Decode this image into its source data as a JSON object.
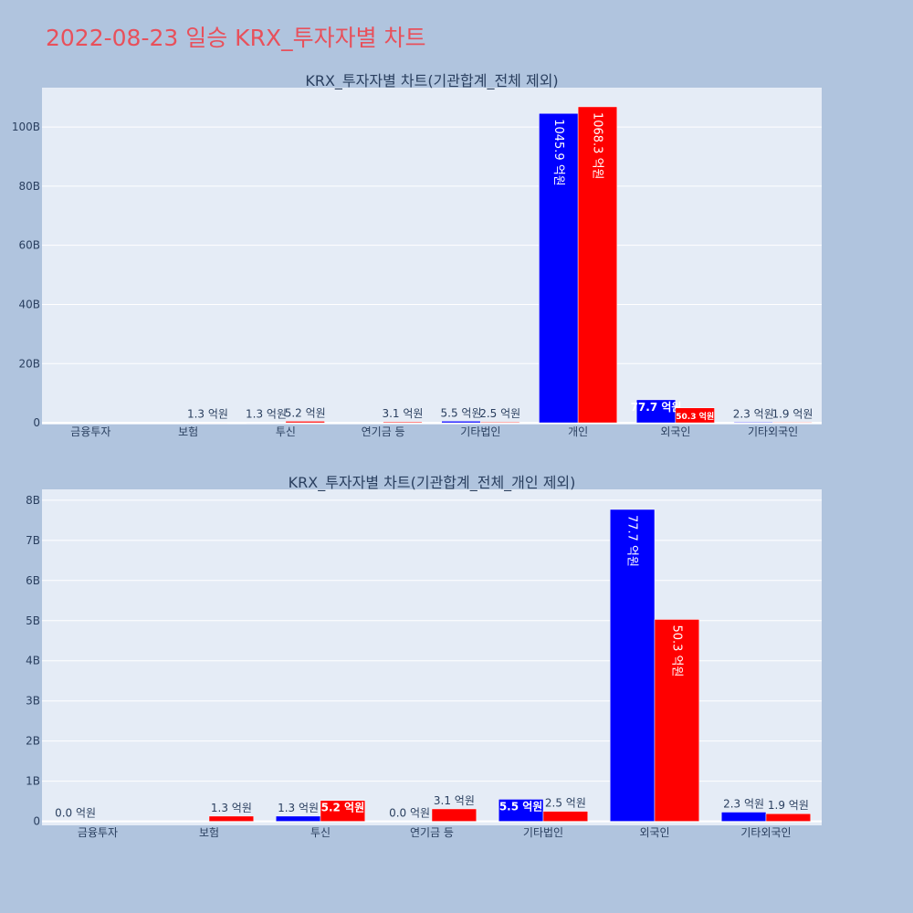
{
  "page_title": "2022-08-23 일승 KRX_투자자별 차트",
  "colors": {
    "buy": "#0000ff",
    "sell": "#ff0000",
    "title": "#e8505b",
    "page_bg": "#b0c4de",
    "plot_bg": "#e5ecf6"
  },
  "chart_data": [
    {
      "type": "bar",
      "title": "KRX_투자자별 차트(기관합계_전체 제외)",
      "categories": [
        "금융투자",
        "보험",
        "투신",
        "연기금 등",
        "기타법인",
        "개인",
        "외국인",
        "기타외국인"
      ],
      "series": [
        {
          "values": [
            0.0,
            0.0,
            0.13,
            0.0,
            0.55,
            104.59,
            7.77,
            0.23
          ],
          "labels": [
            "",
            "",
            "1.3 억원",
            "",
            "5.5 억원",
            "1045.9 억원",
            "77.7 억원",
            "2.3 억원"
          ]
        },
        {
          "values": [
            0.0,
            0.13,
            0.52,
            0.31,
            0.25,
            106.83,
            5.03,
            0.19
          ],
          "labels": [
            "",
            "1.3 억원",
            "5.2 억원",
            "3.1 억원",
            "2.5 억원",
            "1068.3 억원",
            "50.3 억원",
            "1.9 억원"
          ]
        }
      ],
      "yticks": [
        "0",
        "20B",
        "40B",
        "60B",
        "80B",
        "100B"
      ],
      "ytick_values": [
        0,
        20,
        40,
        60,
        80,
        100
      ],
      "ylim": [
        -0.6,
        113.3
      ],
      "grid": true,
      "legend": "none"
    },
    {
      "type": "bar",
      "title": "KRX_투자자별 차트(기관합계_전체_개인 제외)",
      "categories": [
        "금융투자",
        "보험",
        "투신",
        "연기금 등",
        "기타법인",
        "외국인",
        "기타외국인"
      ],
      "series": [
        {
          "values": [
            0.0,
            0.0,
            0.13,
            0.0,
            0.55,
            7.77,
            0.23
          ],
          "labels": [
            "0.0 억원",
            "",
            "1.3 억원",
            "0.0 억원",
            "5.5 억원",
            "77.7 억원",
            "2.3 억원"
          ]
        },
        {
          "values": [
            0.0,
            0.13,
            0.52,
            0.31,
            0.25,
            5.03,
            0.19
          ],
          "labels": [
            "",
            "1.3 억원",
            "5.2 억원",
            "3.1 억원",
            "2.5 억원",
            "50.3 억원",
            "1.9 억원"
          ]
        }
      ],
      "yticks": [
        "0",
        "1B",
        "2B",
        "3B",
        "4B",
        "5B",
        "6B",
        "7B",
        "8B"
      ],
      "ytick_values": [
        0,
        1,
        2,
        3,
        4,
        5,
        6,
        7,
        8
      ],
      "ylim": [
        -0.1,
        8.27
      ],
      "grid": true,
      "legend": "none"
    }
  ]
}
